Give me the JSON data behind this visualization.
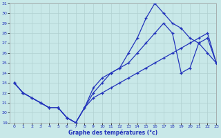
{
  "xlabel": "Graphe des températures (°c)",
  "bg_color": "#c8e8e8",
  "grid_color": "#b0d0d0",
  "line_color": "#2233bb",
  "xlim": [
    -0.5,
    23
  ],
  "ylim": [
    19,
    31
  ],
  "yticks": [
    19,
    20,
    21,
    22,
    23,
    24,
    25,
    26,
    27,
    28,
    29,
    30,
    31
  ],
  "xticks": [
    0,
    1,
    2,
    3,
    4,
    5,
    6,
    7,
    8,
    9,
    10,
    11,
    12,
    13,
    14,
    15,
    16,
    17,
    18,
    19,
    20,
    21,
    22,
    23
  ],
  "line1_x": [
    0,
    1,
    2,
    3,
    4,
    5,
    6,
    7,
    8,
    9,
    10,
    11,
    12,
    13,
    14,
    15,
    16,
    17,
    18,
    19,
    20,
    21,
    22,
    23
  ],
  "line1_y": [
    23,
    22,
    21.5,
    21,
    20.5,
    20.5,
    19.5,
    19,
    20.5,
    22,
    23,
    24,
    24.5,
    26,
    27.5,
    29.5,
    31,
    30,
    29,
    28.5,
    27.5,
    27,
    26,
    25
  ],
  "line2_x": [
    0,
    1,
    3,
    4,
    5,
    6,
    7,
    8,
    9,
    10,
    11,
    12,
    13,
    14,
    15,
    16,
    17,
    18,
    19,
    20,
    21,
    22,
    23
  ],
  "line2_y": [
    23,
    22,
    21,
    20.5,
    20.5,
    19.5,
    19,
    20.5,
    22.5,
    23.5,
    24,
    24.5,
    25,
    26,
    27,
    28,
    29,
    28,
    24,
    24.5,
    27,
    27.5,
    25
  ],
  "line3_x": [
    0,
    1,
    2,
    3,
    4,
    5,
    6,
    7,
    8,
    9,
    10,
    11,
    12,
    13,
    14,
    15,
    16,
    17,
    18,
    19,
    20,
    21,
    22,
    23
  ],
  "line3_y": [
    23,
    22,
    21.5,
    21,
    20.5,
    20.5,
    19.5,
    19,
    20.5,
    21.5,
    22,
    22.5,
    23,
    23.5,
    24,
    24.5,
    25,
    25.5,
    26,
    26.5,
    27,
    27.5,
    28,
    25
  ]
}
